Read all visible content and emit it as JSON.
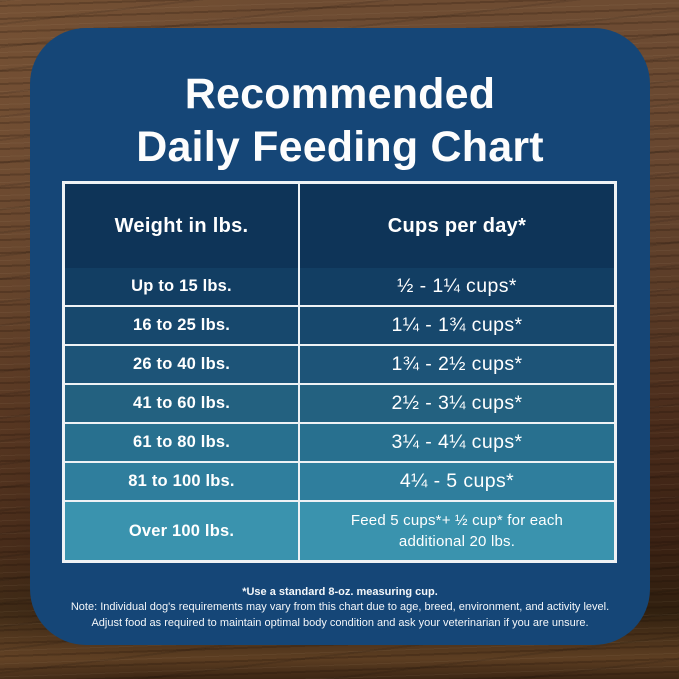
{
  "card": {
    "title_line1": "Recommended",
    "title_line2": "Daily Feeding Chart"
  },
  "chart_data": {
    "type": "table",
    "title": "Recommended Daily Feeding Chart",
    "columns": [
      "Weight in lbs.",
      "Cups per day*"
    ],
    "rows": [
      {
        "weight": "Up to 15 lbs.",
        "cups": "½ - 1¼ cups*"
      },
      {
        "weight": "16 to 25 lbs.",
        "cups": "1¼ - 1¾ cups*"
      },
      {
        "weight": "26 to 40 lbs.",
        "cups": "1¾ - 2½ cups*"
      },
      {
        "weight": "41 to 60 lbs.",
        "cups": "2½ - 3¼ cups*"
      },
      {
        "weight": "61 to 80 lbs.",
        "cups": "3¼ - 4¼ cups*"
      },
      {
        "weight": "81 to 100 lbs.",
        "cups": "4¼ - 5 cups*"
      },
      {
        "weight": "Over 100 lbs.",
        "cups": "Feed 5 cups*+ ½ cup* for each additional 20 lbs."
      }
    ],
    "footnote": "*Use a standard 8-oz. measuring cup."
  },
  "footnotes": {
    "line1": "*Use a standard 8-oz. measuring cup.",
    "line2": "Note: Individual dog's requirements may vary from this chart due to age, breed, environment, and activity level.",
    "line3": "Adjust food as required to maintain optimal body condition and ask your veterinarian if you are unsure."
  },
  "colors": {
    "card_bg": "#154677",
    "header_bg": "#0e3458",
    "border": "#eef2f5",
    "text": "#ffffff",
    "row_bgs": [
      "#123e63",
      "#17486d",
      "#1d5478",
      "#236180",
      "#28708f",
      "#2f7e9d",
      "#3a93ae"
    ],
    "wood_light": "#6e4c32",
    "wood_dark": "#31200f"
  }
}
